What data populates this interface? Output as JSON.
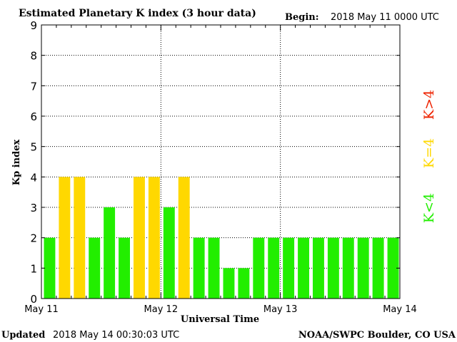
{
  "header": {
    "title": "Estimated Planetary K index (3 hour data)",
    "begin_label": "Begin:",
    "begin_value": "2018 May 11 0000 UTC"
  },
  "footer": {
    "updated_label": "Updated",
    "updated_value": "2018 May 14 00:30:03 UTC",
    "credit": "NOAA/SWPC Boulder, CO USA"
  },
  "legend": {
    "high": "K>4",
    "equal": "K=4",
    "low": "K<4"
  },
  "colors": {
    "low": "#22ee00",
    "equal": "#ffd800",
    "high": "#ee2200"
  },
  "chart_data": {
    "type": "bar",
    "title": "Estimated Planetary K index (3 hour data)",
    "xlabel": "Universal Time",
    "ylabel": "Kp index",
    "ylim": [
      0,
      9
    ],
    "yticks": [
      0,
      1,
      2,
      3,
      4,
      5,
      6,
      7,
      8,
      9
    ],
    "xticks": [
      "May 11",
      "May 12",
      "May 13",
      "May 14"
    ],
    "grid": true,
    "interval_hours": 3,
    "values": [
      2,
      4,
      4,
      2,
      3,
      2,
      4,
      4,
      3,
      4,
      2,
      2,
      1,
      1,
      2,
      2,
      2,
      2,
      2,
      2,
      2,
      2,
      2,
      2
    ]
  }
}
